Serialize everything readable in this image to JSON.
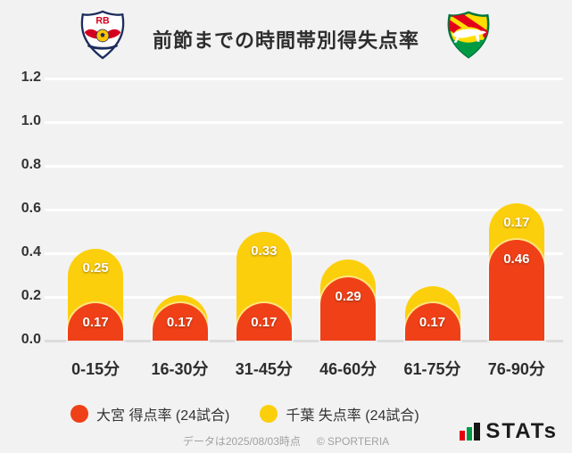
{
  "header": {
    "title": "前節までの時間帯別得失点率"
  },
  "chart_data": {
    "type": "bar",
    "stacked": true,
    "title": "前節までの時間帯別得失点率",
    "categories": [
      "0-15分",
      "16-30分",
      "31-45分",
      "46-60分",
      "61-75分",
      "76-90分"
    ],
    "series": [
      {
        "name": "大宮 得点率 (24試合)",
        "color": "#f04018",
        "values": [
          0.17,
          0.17,
          0.17,
          0.29,
          0.17,
          0.46
        ],
        "value_labels": [
          "0.17",
          "0.17",
          "0.17",
          "0.29",
          "0.17",
          "0.46"
        ]
      },
      {
        "name": "千葉 失点率 (24試合)",
        "color": "#fccf0d",
        "values": [
          0.25,
          0.04,
          0.33,
          0.08,
          0.08,
          0.17
        ],
        "value_labels": [
          "0.25",
          "",
          "0.33",
          "",
          "",
          "0.17"
        ]
      }
    ],
    "ylim": [
      0,
      1.2
    ],
    "yticks": [
      0,
      0.2,
      0.4,
      0.6,
      0.8,
      1.0,
      1.2
    ],
    "grid": true,
    "legend_position": "bottom",
    "background": "#f2f2f2",
    "gridline_color": "#ffffff"
  },
  "footer": {
    "note": "データは2025/08/03時点",
    "copyright": "© SPORTERIA",
    "stats_logo_text": "STATs"
  }
}
